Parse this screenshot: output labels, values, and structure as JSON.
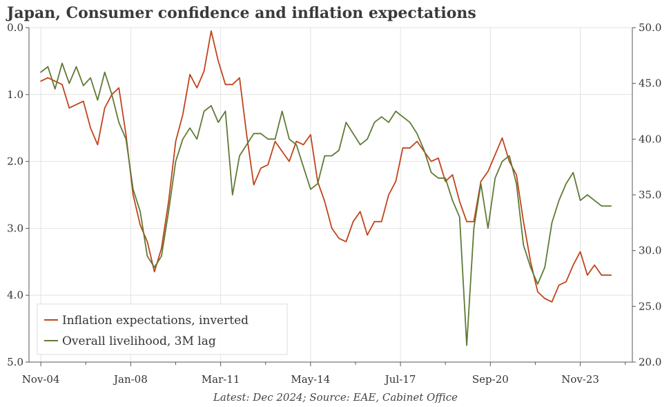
{
  "title": "Japan, Consumer confidence and inflation expectations",
  "caption": "Latest: Dec 2024; Source: EAE, Cabinet Office",
  "colors": {
    "inflation": "#c0431a",
    "livelihood": "#5e7a35",
    "grid": "#e2e2e2",
    "axis": "#555555"
  },
  "chart_data": {
    "type": "line",
    "title": "Japan, Consumer confidence and inflation expectations",
    "grid": true,
    "legend_position": "bottom-left",
    "x_axis": {
      "tick_labels": [
        "Nov-04",
        "Jan-08",
        "Mar-11",
        "May-14",
        "Jul-17",
        "Sep-20",
        "Nov-23"
      ],
      "range": [
        "2004-06",
        "2025-09"
      ]
    },
    "left_axis": {
      "inverted": true,
      "range": [
        0.0,
        5.0
      ],
      "tick_labels": [
        "0.0",
        "1.0",
        "2.0",
        "3.0",
        "4.0",
        "5.0"
      ]
    },
    "right_axis": {
      "range": [
        20.0,
        50.0
      ],
      "tick_labels": [
        "20.0",
        "25.0",
        "30.0",
        "35.0",
        "40.0",
        "45.0",
        "50.0"
      ]
    },
    "series": [
      {
        "name": "Inflation expectations, inverted",
        "axis": "left",
        "color": "#c0431a",
        "points": [
          [
            "2004-11",
            0.8
          ],
          [
            "2005-02",
            0.75
          ],
          [
            "2005-05",
            0.8
          ],
          [
            "2005-08",
            0.85
          ],
          [
            "2005-11",
            1.2
          ],
          [
            "2006-02",
            1.15
          ],
          [
            "2006-05",
            1.1
          ],
          [
            "2006-08",
            1.5
          ],
          [
            "2006-11",
            1.75
          ],
          [
            "2007-02",
            1.2
          ],
          [
            "2007-05",
            1.0
          ],
          [
            "2007-08",
            0.9
          ],
          [
            "2007-11",
            1.6
          ],
          [
            "2008-02",
            2.5
          ],
          [
            "2008-05",
            2.95
          ],
          [
            "2008-08",
            3.2
          ],
          [
            "2008-11",
            3.65
          ],
          [
            "2009-02",
            3.3
          ],
          [
            "2009-05",
            2.6
          ],
          [
            "2009-08",
            1.7
          ],
          [
            "2009-11",
            1.3
          ],
          [
            "2010-02",
            0.7
          ],
          [
            "2010-05",
            0.9
          ],
          [
            "2010-08",
            0.65
          ],
          [
            "2010-11",
            0.05
          ],
          [
            "2011-02",
            0.5
          ],
          [
            "2011-05",
            0.85
          ],
          [
            "2011-08",
            0.85
          ],
          [
            "2011-11",
            0.75
          ],
          [
            "2012-02",
            1.6
          ],
          [
            "2012-05",
            2.35
          ],
          [
            "2012-08",
            2.1
          ],
          [
            "2012-11",
            2.05
          ],
          [
            "2013-02",
            1.7
          ],
          [
            "2013-05",
            1.85
          ],
          [
            "2013-08",
            2.0
          ],
          [
            "2013-11",
            1.7
          ],
          [
            "2014-02",
            1.75
          ],
          [
            "2014-05",
            1.6
          ],
          [
            "2014-08",
            2.3
          ],
          [
            "2014-11",
            2.6
          ],
          [
            "2015-02",
            3.0
          ],
          [
            "2015-05",
            3.15
          ],
          [
            "2015-08",
            3.2
          ],
          [
            "2015-11",
            2.9
          ],
          [
            "2016-02",
            2.75
          ],
          [
            "2016-05",
            3.1
          ],
          [
            "2016-08",
            2.9
          ],
          [
            "2016-11",
            2.9
          ],
          [
            "2017-02",
            2.5
          ],
          [
            "2017-05",
            2.3
          ],
          [
            "2017-08",
            1.8
          ],
          [
            "2017-11",
            1.8
          ],
          [
            "2018-02",
            1.7
          ],
          [
            "2018-05",
            1.85
          ],
          [
            "2018-08",
            2.0
          ],
          [
            "2018-11",
            1.95
          ],
          [
            "2019-02",
            2.3
          ],
          [
            "2019-05",
            2.2
          ],
          [
            "2019-08",
            2.6
          ],
          [
            "2019-11",
            2.9
          ],
          [
            "2020-02",
            2.9
          ],
          [
            "2020-05",
            2.3
          ],
          [
            "2020-08",
            2.15
          ],
          [
            "2020-11",
            1.9
          ],
          [
            "2021-02",
            1.65
          ],
          [
            "2021-05",
            2.0
          ],
          [
            "2021-08",
            2.2
          ],
          [
            "2021-11",
            2.9
          ],
          [
            "2022-02",
            3.5
          ],
          [
            "2022-05",
            3.95
          ],
          [
            "2022-08",
            4.05
          ],
          [
            "2022-11",
            4.1
          ],
          [
            "2023-02",
            3.85
          ],
          [
            "2023-05",
            3.8
          ],
          [
            "2023-08",
            3.55
          ],
          [
            "2023-11",
            3.35
          ],
          [
            "2024-02",
            3.7
          ],
          [
            "2024-05",
            3.55
          ],
          [
            "2024-08",
            3.7
          ],
          [
            "2024-12",
            3.7
          ]
        ]
      },
      {
        "name": "Overall livelihood, 3M lag",
        "axis": "right",
        "color": "#5e7a35",
        "points": [
          [
            "2004-11",
            46.0
          ],
          [
            "2005-02",
            46.5
          ],
          [
            "2005-05",
            44.5
          ],
          [
            "2005-08",
            46.8
          ],
          [
            "2005-11",
            45.0
          ],
          [
            "2006-02",
            46.5
          ],
          [
            "2006-05",
            44.8
          ],
          [
            "2006-08",
            45.5
          ],
          [
            "2006-11",
            43.5
          ],
          [
            "2007-02",
            46.0
          ],
          [
            "2007-05",
            44.0
          ],
          [
            "2007-08",
            41.5
          ],
          [
            "2007-11",
            40.0
          ],
          [
            "2008-02",
            35.5
          ],
          [
            "2008-05",
            33.5
          ],
          [
            "2008-08",
            29.5
          ],
          [
            "2008-11",
            28.5
          ],
          [
            "2009-02",
            29.5
          ],
          [
            "2009-05",
            33.5
          ],
          [
            "2009-08",
            38.0
          ],
          [
            "2009-11",
            40.0
          ],
          [
            "2010-02",
            41.0
          ],
          [
            "2010-05",
            40.0
          ],
          [
            "2010-08",
            42.5
          ],
          [
            "2010-11",
            43.0
          ],
          [
            "2011-02",
            41.5
          ],
          [
            "2011-05",
            42.5
          ],
          [
            "2011-08",
            35.0
          ],
          [
            "2011-11",
            38.5
          ],
          [
            "2012-02",
            39.5
          ],
          [
            "2012-05",
            40.5
          ],
          [
            "2012-08",
            40.5
          ],
          [
            "2012-11",
            40.0
          ],
          [
            "2013-02",
            40.0
          ],
          [
            "2013-05",
            42.5
          ],
          [
            "2013-08",
            40.0
          ],
          [
            "2013-11",
            39.5
          ],
          [
            "2014-02",
            37.5
          ],
          [
            "2014-05",
            35.5
          ],
          [
            "2014-08",
            36.0
          ],
          [
            "2014-11",
            38.5
          ],
          [
            "2015-02",
            38.5
          ],
          [
            "2015-05",
            39.0
          ],
          [
            "2015-08",
            41.5
          ],
          [
            "2015-11",
            40.5
          ],
          [
            "2016-02",
            39.5
          ],
          [
            "2016-05",
            40.0
          ],
          [
            "2016-08",
            41.5
          ],
          [
            "2016-11",
            42.0
          ],
          [
            "2017-02",
            41.5
          ],
          [
            "2017-05",
            42.5
          ],
          [
            "2017-08",
            42.0
          ],
          [
            "2017-11",
            41.5
          ],
          [
            "2018-02",
            40.5
          ],
          [
            "2018-05",
            39.0
          ],
          [
            "2018-08",
            37.0
          ],
          [
            "2018-11",
            36.5
          ],
          [
            "2019-02",
            36.5
          ],
          [
            "2019-05",
            34.5
          ],
          [
            "2019-08",
            33.0
          ],
          [
            "2019-11",
            21.5
          ],
          [
            "2020-02",
            32.0
          ],
          [
            "2020-05",
            36.0
          ],
          [
            "2020-08",
            32.0
          ],
          [
            "2020-11",
            36.5
          ],
          [
            "2021-02",
            38.0
          ],
          [
            "2021-05",
            38.5
          ],
          [
            "2021-08",
            36.0
          ],
          [
            "2021-11",
            30.5
          ],
          [
            "2022-02",
            28.5
          ],
          [
            "2022-05",
            27.0
          ],
          [
            "2022-08",
            28.5
          ],
          [
            "2022-11",
            32.5
          ],
          [
            "2023-02",
            34.5
          ],
          [
            "2023-05",
            36.0
          ],
          [
            "2023-08",
            37.0
          ],
          [
            "2023-11",
            34.5
          ],
          [
            "2024-02",
            35.0
          ],
          [
            "2024-05",
            34.5
          ],
          [
            "2024-08",
            34.0
          ],
          [
            "2024-12",
            34.0
          ]
        ]
      }
    ]
  }
}
